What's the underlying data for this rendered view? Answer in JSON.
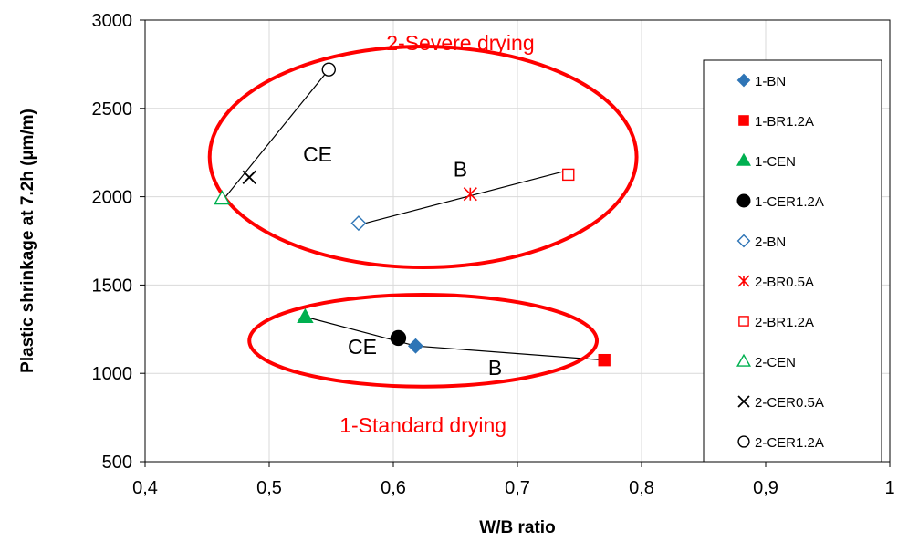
{
  "chart_data": {
    "type": "scatter",
    "xlabel": "W/B ratio",
    "ylabel": "Plastic shrinkage at 7.2h  (µm/m)",
    "xlim": [
      0.4,
      1.0
    ],
    "ylim": [
      500,
      3000
    ],
    "x_ticks": [
      "0,4",
      "0,5",
      "0,6",
      "0,7",
      "0,8",
      "0,9",
      "1"
    ],
    "y_ticks": [
      "500",
      "1000",
      "1500",
      "2000",
      "2500",
      "3000"
    ],
    "grid": "on",
    "legend_position": "right",
    "series": [
      {
        "name": "1-BN",
        "x": 0.618,
        "y": 1155,
        "marker": "diamond",
        "filled": true,
        "color": "#2e75b6"
      },
      {
        "name": "1-BR1.2A",
        "x": 0.77,
        "y": 1075,
        "marker": "square",
        "filled": true,
        "color": "#ff0000"
      },
      {
        "name": "1-CEN",
        "x": 0.529,
        "y": 1320,
        "marker": "triangle",
        "filled": true,
        "color": "#00b050"
      },
      {
        "name": "1-CER1.2A",
        "x": 0.604,
        "y": 1200,
        "marker": "circle",
        "filled": true,
        "color": "#000000"
      },
      {
        "name": "2-BN",
        "x": 0.572,
        "y": 1850,
        "marker": "diamond",
        "filled": false,
        "color": "#2e75b6"
      },
      {
        "name": "2-BR0.5A",
        "x": 0.662,
        "y": 2015,
        "marker": "star",
        "filled": false,
        "color": "#ff0000"
      },
      {
        "name": "2-BR1.2A",
        "x": 0.741,
        "y": 2125,
        "marker": "square",
        "filled": false,
        "color": "#ff0000"
      },
      {
        "name": "2-CEN",
        "x": 0.462,
        "y": 1990,
        "marker": "triangle",
        "filled": false,
        "color": "#00b050"
      },
      {
        "name": "2-CER0.5A",
        "x": 0.484,
        "y": 2110,
        "marker": "x",
        "filled": false,
        "color": "#000000"
      },
      {
        "name": "2-CER1.2A",
        "x": 0.548,
        "y": 2720,
        "marker": "circle",
        "filled": false,
        "color": "#000000"
      }
    ],
    "connector_lines": [
      [
        [
          0.529,
          1320
        ],
        [
          0.618,
          1155
        ],
        [
          0.77,
          1075
        ]
      ],
      [
        [
          0.462,
          1975
        ],
        [
          0.548,
          2720
        ]
      ],
      [
        [
          0.572,
          1840
        ],
        [
          0.741,
          2150
        ]
      ]
    ],
    "ellipses": [
      {
        "cx": 0.624,
        "cy": 2225,
        "rx": 0.172,
        "ry": 625
      },
      {
        "cx": 0.624,
        "cy": 1185,
        "rx": 0.14,
        "ry": 260
      }
    ],
    "annotations": [
      {
        "text": "2-Severe drying",
        "x": 0.654,
        "y": 2830,
        "color": "#ff0000"
      },
      {
        "text": "CE",
        "x": 0.539,
        "y": 2200,
        "color": "#000000"
      },
      {
        "text": "B",
        "x": 0.654,
        "y": 2115,
        "color": "#000000"
      },
      {
        "text": "CE",
        "x": 0.575,
        "y": 1110,
        "color": "#000000"
      },
      {
        "text": "B",
        "x": 0.682,
        "y": 990,
        "color": "#000000"
      },
      {
        "text": "1-Standard drying",
        "x": 0.624,
        "y": 665,
        "color": "#ff0000"
      }
    ],
    "colors": {
      "ellipse": "#ff0000",
      "grid": "#d9d9d9",
      "connector": "#000000"
    }
  }
}
